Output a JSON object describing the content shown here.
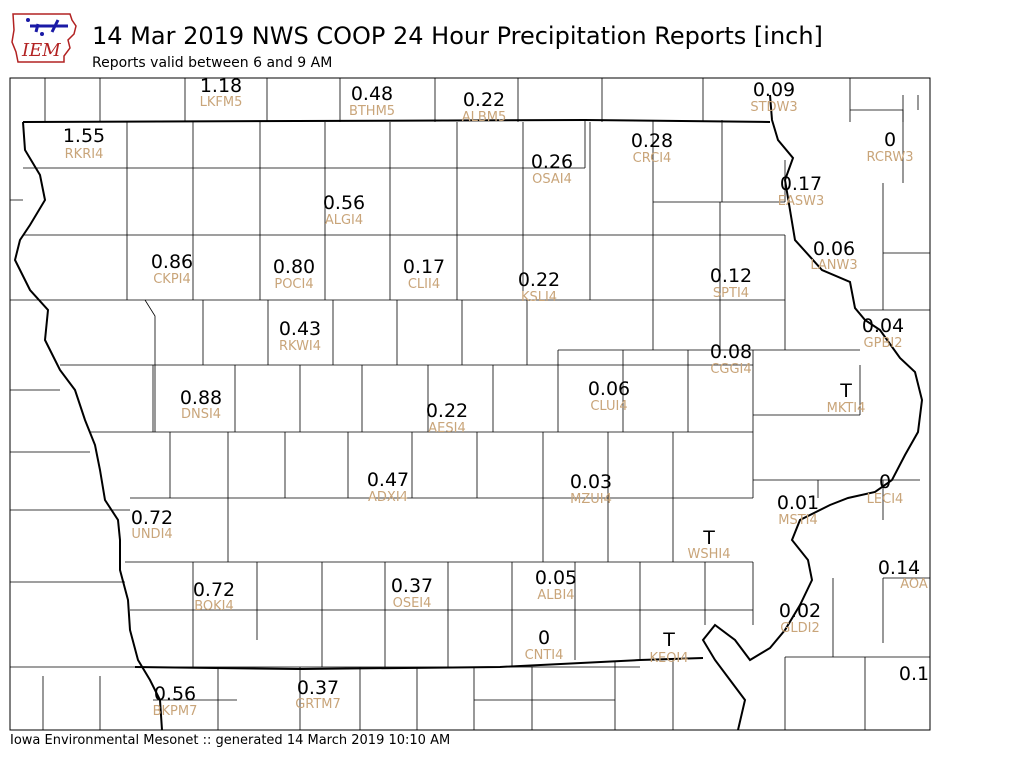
{
  "header": {
    "logo_text": "IEM",
    "title": "14 Mar 2019 NWS COOP 24 Hour Precipitation Reports [inch]",
    "subtitle": "Reports valid between 6 and 9 AM"
  },
  "footer": {
    "text": "Iowa Environmental Mesonet :: generated 14 March 2019 10:10 AM"
  },
  "colors": {
    "value_text": "#000000",
    "station_text": "#c9a57a",
    "county_lines": "#000000",
    "logo_blue": "#1a1aa6",
    "logo_red": "#b22222"
  },
  "stations": [
    {
      "id": "LKFM5",
      "value": "1.18"
    },
    {
      "id": "BTHM5",
      "value": "0.48"
    },
    {
      "id": "ALBM5",
      "value": "0.22"
    },
    {
      "id": "STDW3",
      "value": "0.09"
    },
    {
      "id": "RKRI4",
      "value": "1.55"
    },
    {
      "id": "CRCI4",
      "value": "0.28"
    },
    {
      "id": "RCRW3",
      "value": "0"
    },
    {
      "id": "OSAI4",
      "value": "0.26"
    },
    {
      "id": "EASW3",
      "value": "0.17"
    },
    {
      "id": "ALGI4",
      "value": "0.56"
    },
    {
      "id": "LANW3",
      "value": "0.06"
    },
    {
      "id": "CKPI4",
      "value": "0.86"
    },
    {
      "id": "POCI4",
      "value": "0.80"
    },
    {
      "id": "CLII4",
      "value": "0.17"
    },
    {
      "id": "KSLI4",
      "value": "0.22"
    },
    {
      "id": "SPTI4",
      "value": "0.12"
    },
    {
      "id": "GPBI2",
      "value": "0.04"
    },
    {
      "id": "RKWI4",
      "value": "0.43"
    },
    {
      "id": "CGGI4",
      "value": "0.08"
    },
    {
      "id": "CLUI4",
      "value": "0.06"
    },
    {
      "id": "DNSI4",
      "value": "0.88"
    },
    {
      "id": "MKTI4",
      "value": "T"
    },
    {
      "id": "AESI4",
      "value": "0.22"
    },
    {
      "id": "ADXI4",
      "value": "0.47"
    },
    {
      "id": "MZUI4",
      "value": "0.03"
    },
    {
      "id": "LECI4",
      "value": "0"
    },
    {
      "id": "MSTI4",
      "value": "0.01"
    },
    {
      "id": "UNDI4",
      "value": "0.72"
    },
    {
      "id": "WSHI4",
      "value": "T"
    },
    {
      "id": "AOA",
      "value": "0.14"
    },
    {
      "id": "ALBI4",
      "value": "0.05"
    },
    {
      "id": "BOKI4",
      "value": "0.72"
    },
    {
      "id": "OSEI4",
      "value": "0.37"
    },
    {
      "id": "GLDI2",
      "value": "0.02"
    },
    {
      "id": "CNTI4",
      "value": "0"
    },
    {
      "id": "KEOI4",
      "value": "T"
    },
    {
      "id": "",
      "value": "0.1"
    },
    {
      "id": "BKPM7",
      "value": "0.56"
    },
    {
      "id": "GRTM7",
      "value": "0.37"
    }
  ]
}
